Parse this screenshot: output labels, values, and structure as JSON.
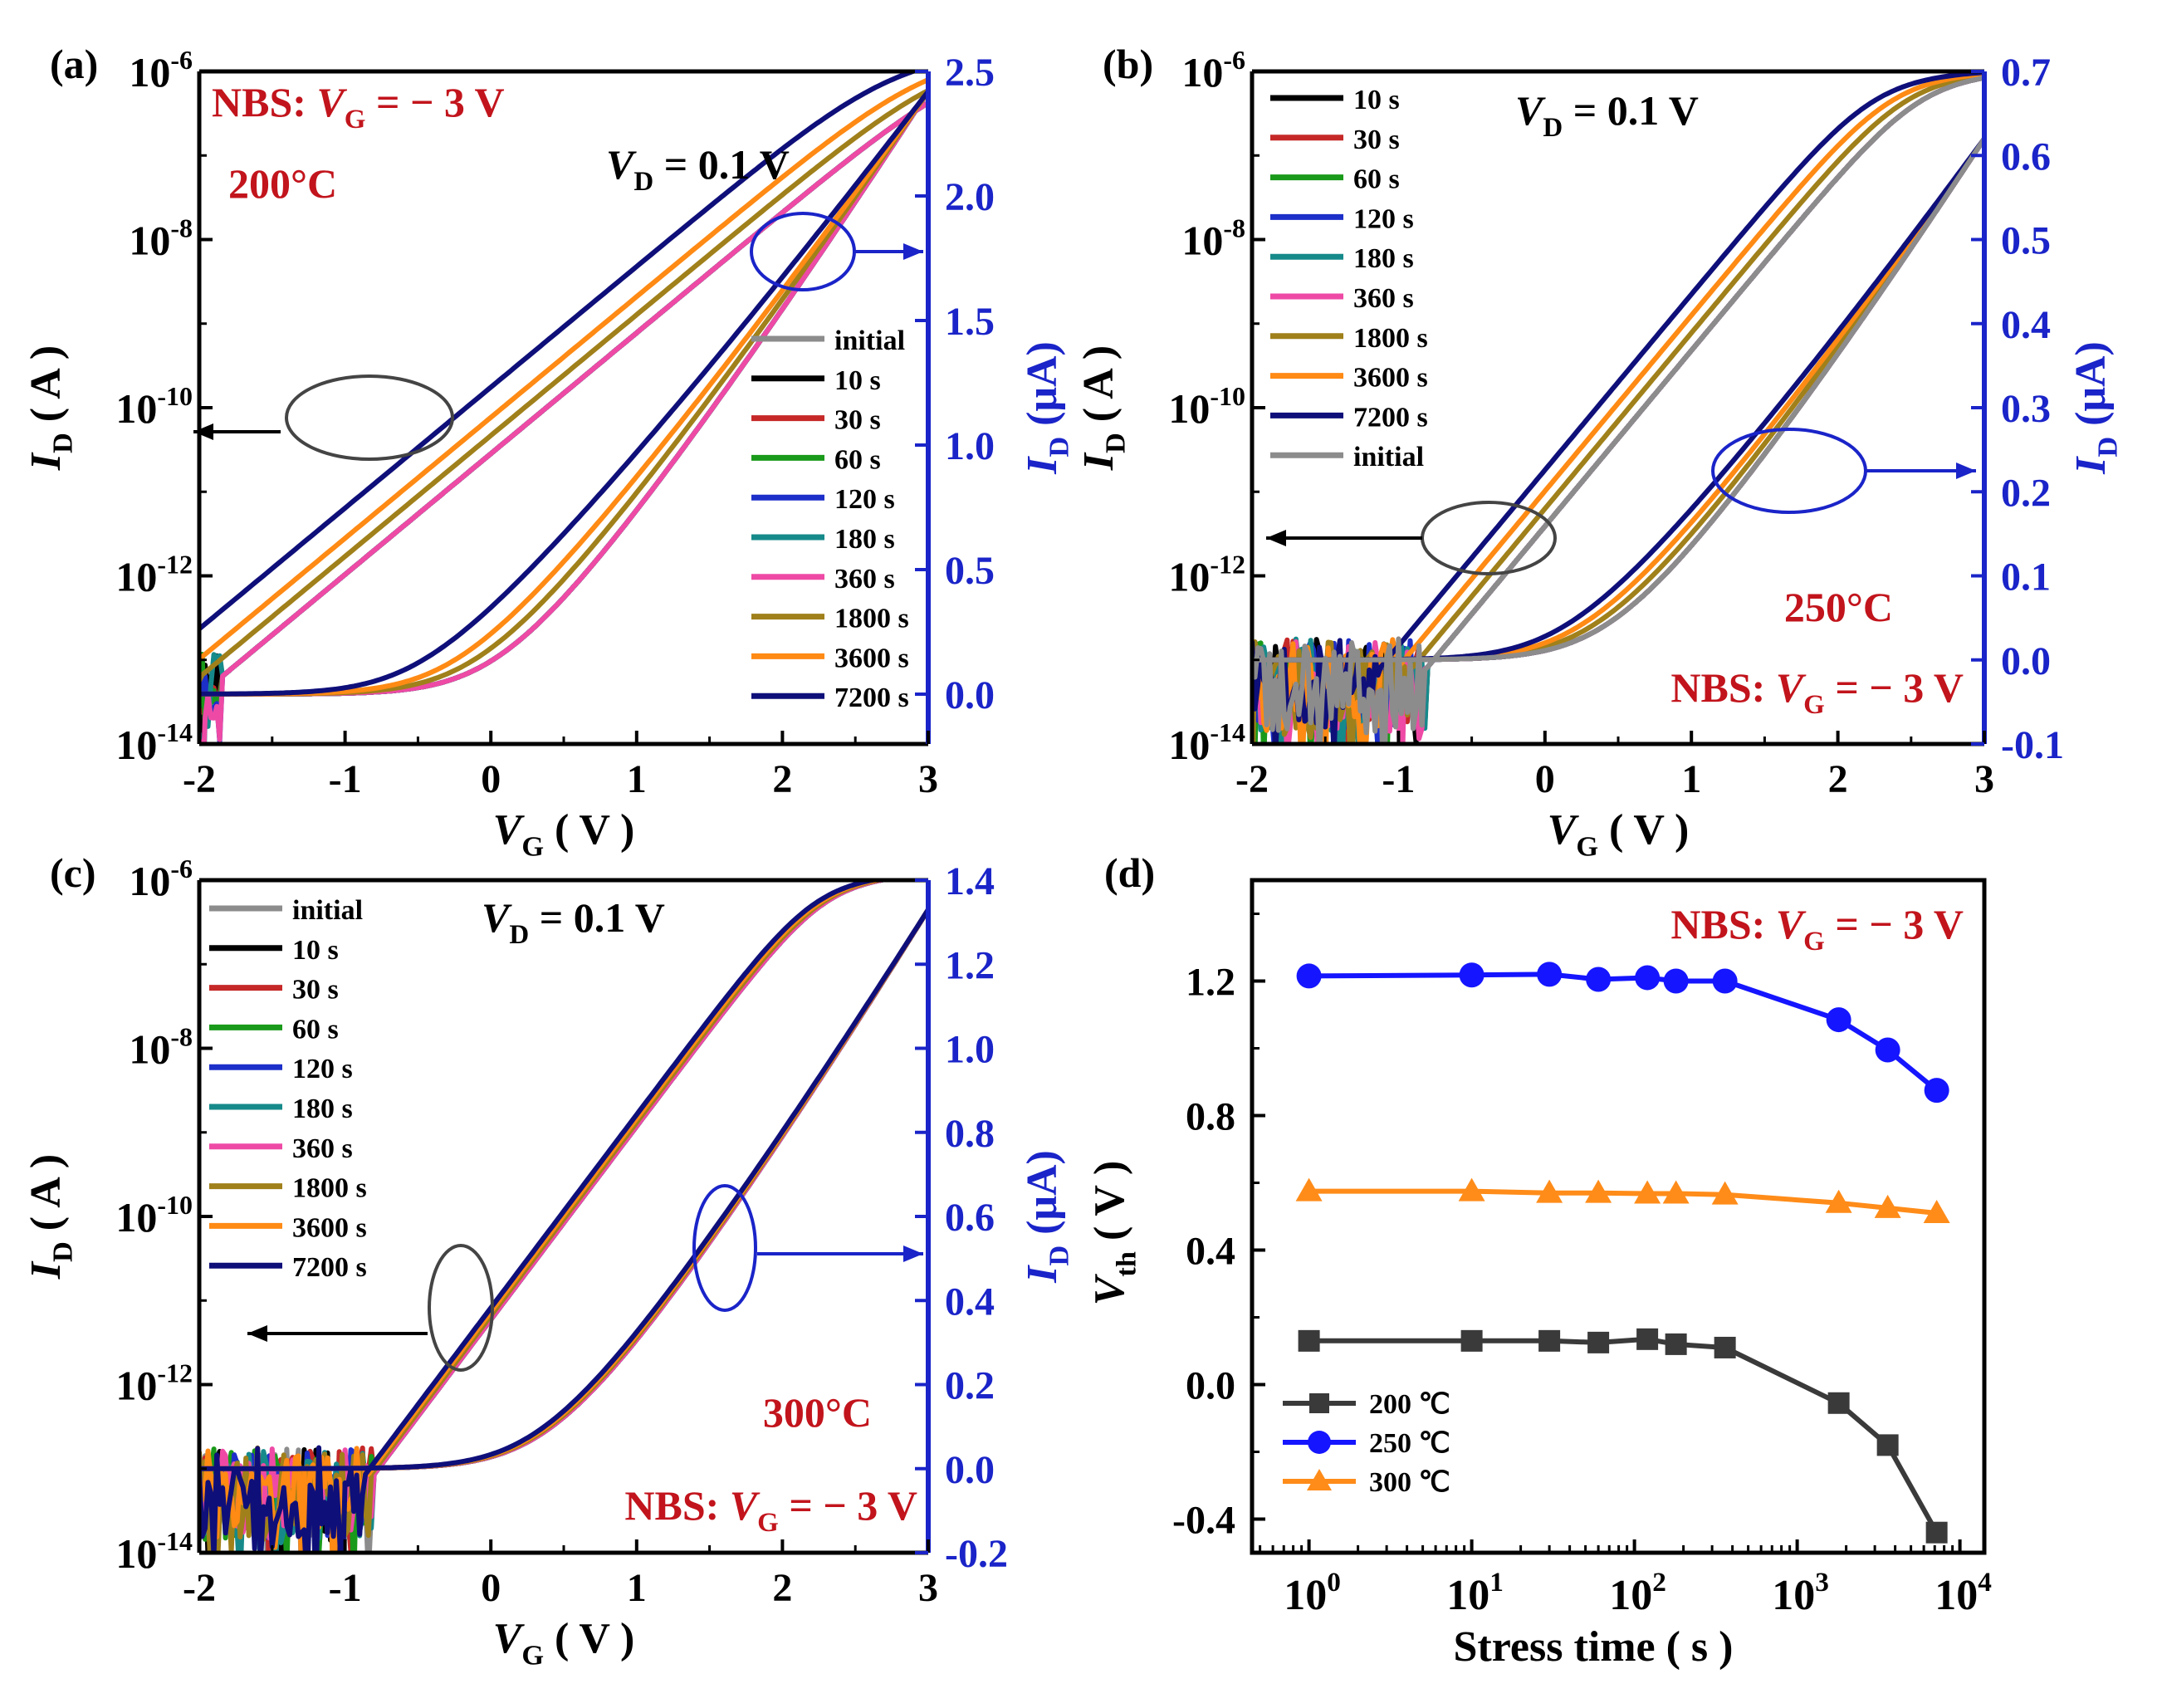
{
  "colors": {
    "black": "#000000",
    "red": "#c62828",
    "green": "#1a9a1a",
    "blue": "#1d2fc9",
    "teal": "#168a8a",
    "pink": "#ee4aa5",
    "olive": "#a0801a",
    "orange": "#ff8a14",
    "navy": "#0f0f7a",
    "gray": "#8c8c8c",
    "axis_blue": "#1a24c8",
    "annot_red": "#c2141c",
    "series_black": "#3a3a3a",
    "series_blue": "#1515ff",
    "series_orange": "#ff8c19"
  },
  "chart_data": [
    {
      "panel": "(a)",
      "type": "line",
      "temperature_label": "200°C",
      "stress_label": {
        "prefix": "NBS: ",
        "var": "V",
        "sub": "G",
        "suffix": " = − 3 V"
      },
      "vd_label": {
        "var": "V",
        "sub": "D",
        "suffix": " = 0.1 V"
      },
      "xlabel": {
        "var": "V",
        "sub": "G",
        "suffix": " ( V )"
      },
      "ylabel_left": {
        "var": "I",
        "sub": "D",
        "suffix": " ( A )"
      },
      "ylabel_right": {
        "var": "I",
        "sub": "D",
        "suffix": " (μA)"
      },
      "xlim": [
        -2,
        3
      ],
      "ylim_left_log10": [
        -14,
        -6
      ],
      "ylim_right": [
        -0.2,
        2.5
      ],
      "x_ticks": [
        "-2",
        "-1",
        "0",
        "1",
        "2",
        "3"
      ],
      "y_left_ticks": [
        {
          "base": "10",
          "exp": "-14"
        },
        {
          "base": "10",
          "exp": "-12"
        },
        {
          "base": "10",
          "exp": "-10"
        },
        {
          "base": "10",
          "exp": "-8"
        },
        {
          "base": "10",
          "exp": "-6"
        }
      ],
      "y_right_ticks": [
        "0.0",
        "0.5",
        "1.0",
        "1.5",
        "2.0",
        "2.5"
      ],
      "legend": [
        "initial",
        "10 s",
        "30 s",
        "60 s",
        "120 s",
        "180 s",
        "360 s",
        "1800 s",
        "3600 s",
        "7200 s"
      ],
      "series_colors": [
        "gray",
        "black",
        "red",
        "green",
        "blue",
        "teal",
        "pink",
        "olive",
        "orange",
        "navy"
      ],
      "vth_shift": [
        0,
        0,
        0,
        0,
        0,
        0,
        0,
        -0.15,
        -0.3,
        -0.55
      ],
      "transfer_model": {
        "vt_log": -1.15,
        "ss": 0.16,
        "on_current_log": -5.9,
        "floor_log": -13.4,
        "vt_lin": -0.1,
        "i_max": 2.42
      }
    },
    {
      "panel": "(b)",
      "type": "line",
      "temperature_label": "250°C",
      "stress_label": {
        "prefix": "NBS: ",
        "var": "V",
        "sub": "G",
        "suffix": " = − 3 V"
      },
      "vd_label": {
        "var": "V",
        "sub": "D",
        "suffix": " = 0.1 V"
      },
      "xlabel": {
        "var": "V",
        "sub": "G",
        "suffix": " ( V )"
      },
      "ylabel_left": {
        "var": "I",
        "sub": "D",
        "suffix": " ( A )"
      },
      "ylabel_right": {
        "var": "I",
        "sub": "D",
        "suffix": " (μA)"
      },
      "xlim": [
        -2,
        3
      ],
      "ylim_left_log10": [
        -14,
        -6
      ],
      "ylim_right": [
        -0.1,
        0.7
      ],
      "x_ticks": [
        "-2",
        "-1",
        "0",
        "1",
        "2",
        "3"
      ],
      "y_left_ticks": [
        {
          "base": "10",
          "exp": "-14"
        },
        {
          "base": "10",
          "exp": "-12"
        },
        {
          "base": "10",
          "exp": "-10"
        },
        {
          "base": "10",
          "exp": "-8"
        },
        {
          "base": "10",
          "exp": "-6"
        }
      ],
      "y_right_ticks": [
        "-0.1",
        "0.0",
        "0.1",
        "0.2",
        "0.3",
        "0.4",
        "0.5",
        "0.6",
        "0.7"
      ],
      "legend": [
        "10 s",
        "30 s",
        "60 s",
        "120 s",
        "180 s",
        "360 s",
        "1800 s",
        "3600 s",
        "7200 s",
        "initial"
      ],
      "series_colors": [
        "black",
        "red",
        "green",
        "blue",
        "teal",
        "pink",
        "olive",
        "orange",
        "navy",
        "gray"
      ],
      "vth_shift": [
        0,
        0,
        0,
        0,
        0,
        0,
        -0.1,
        -0.2,
        -0.32,
        0
      ],
      "transfer_model": {
        "vt_log": -0.33,
        "ss": 0.11,
        "on_current_log": -6.05,
        "floor_log": -13.3,
        "vt_lin": 0.3,
        "i_max": 0.62
      }
    },
    {
      "panel": "(c)",
      "type": "line",
      "temperature_label": "300°C",
      "stress_label": {
        "prefix": "NBS: ",
        "var": "V",
        "sub": "G",
        "suffix": " = − 3 V"
      },
      "vd_label": {
        "var": "V",
        "sub": "D",
        "suffix": " = 0.1 V"
      },
      "xlabel": {
        "var": "V",
        "sub": "G",
        "suffix": " ( V )"
      },
      "ylabel_left": {
        "var": "I",
        "sub": "D",
        "suffix": " ( A )"
      },
      "ylabel_right": {
        "var": "I",
        "sub": "D",
        "suffix": " (μA)"
      },
      "xlim": [
        -2,
        3
      ],
      "ylim_left_log10": [
        -14,
        -6
      ],
      "ylim_right": [
        -0.2,
        1.4
      ],
      "x_ticks": [
        "-2",
        "-1",
        "0",
        "1",
        "2",
        "3"
      ],
      "y_left_ticks": [
        {
          "base": "10",
          "exp": "-14"
        },
        {
          "base": "10",
          "exp": "-12"
        },
        {
          "base": "10",
          "exp": "-10"
        },
        {
          "base": "10",
          "exp": "-8"
        },
        {
          "base": "10",
          "exp": "-6"
        }
      ],
      "y_right_ticks": [
        "-0.2",
        "0.0",
        "0.2",
        "0.4",
        "0.6",
        "0.8",
        "1.0",
        "1.2",
        "1.4"
      ],
      "legend": [
        "initial",
        "10 s",
        "30 s",
        "60 s",
        "120 s",
        "180 s",
        "360 s",
        "1800 s",
        "3600 s",
        "7200 s"
      ],
      "series_colors": [
        "gray",
        "black",
        "red",
        "green",
        "blue",
        "teal",
        "pink",
        "olive",
        "orange",
        "navy"
      ],
      "vth_shift": [
        0,
        0,
        0,
        0,
        0,
        0,
        0,
        -0.02,
        -0.04,
        -0.06
      ],
      "transfer_model": {
        "vt_log": -0.38,
        "ss": 0.1,
        "on_current_log": -5.95,
        "floor_log": -13.3,
        "vt_lin": 0.25,
        "i_max": 1.33
      }
    },
    {
      "panel": "(d)",
      "type": "scatter",
      "stress_label": {
        "prefix": "NBS: ",
        "var": "V",
        "sub": "G",
        "suffix": " = − 3 V"
      },
      "xlabel": "Stress time  ( s )",
      "ylabel": {
        "var": "V",
        "sub": "th",
        "suffix": " ( V )"
      },
      "x_scale": "log",
      "xlim_log10": [
        -0.35,
        4.15
      ],
      "ylim": [
        -0.5,
        1.5
      ],
      "x_ticks": [
        {
          "base": "10",
          "exp": "0"
        },
        {
          "base": "10",
          "exp": "1"
        },
        {
          "base": "10",
          "exp": "2"
        },
        {
          "base": "10",
          "exp": "3"
        },
        {
          "base": "10",
          "exp": "4"
        }
      ],
      "y_ticks": [
        "-0.4",
        "0.0",
        "0.4",
        "0.8",
        "1.2"
      ],
      "x": [
        1,
        10,
        30,
        60,
        120,
        180,
        360,
        1800,
        3600,
        7200
      ],
      "series": [
        {
          "name": "200 ℃",
          "marker": "square",
          "color": "series_black",
          "values": [
            0.13,
            0.13,
            0.13,
            0.125,
            0.135,
            0.12,
            0.11,
            -0.055,
            -0.18,
            -0.44
          ]
        },
        {
          "name": "250 ℃",
          "marker": "circle",
          "color": "series_blue",
          "values": [
            1.215,
            1.218,
            1.22,
            1.205,
            1.21,
            1.2,
            1.2,
            1.085,
            0.995,
            0.875
          ]
        },
        {
          "name": "300 ℃",
          "marker": "triangle",
          "color": "series_orange",
          "values": [
            0.575,
            0.575,
            0.57,
            0.57,
            0.568,
            0.568,
            0.565,
            0.54,
            0.525,
            0.51
          ]
        }
      ],
      "legend_position": "bottom-left"
    }
  ],
  "panel_d_legend_labels": [
    "200 ℃",
    "250 ℃",
    "300 ℃"
  ]
}
